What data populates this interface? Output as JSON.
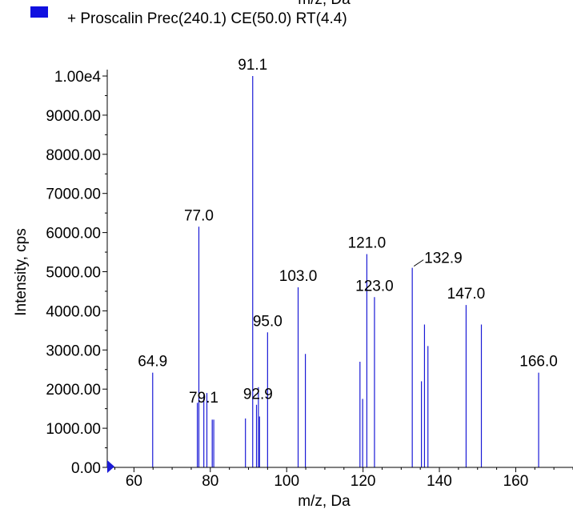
{
  "header": {
    "cut_title": "m/z, Da"
  },
  "legend": {
    "text": "+ Proscalin Prec(240.1) CE(50.0) RT(4.4)",
    "swatch_color": "#1010e0"
  },
  "colors": {
    "peaks": "#1a1ad6",
    "axis": "#000000",
    "marker": "#1a1ad6"
  },
  "chart_data": {
    "type": "bar",
    "xlabel": "m/z, Da",
    "ylabel": "Intensity, cps",
    "xlim": [
      53,
      175
    ],
    "ylim": [
      0,
      10000
    ],
    "x_ticks": [
      {
        "value": 60,
        "label": "60"
      },
      {
        "value": 80,
        "label": "80"
      },
      {
        "value": 100,
        "label": "100"
      },
      {
        "value": 120,
        "label": "120"
      },
      {
        "value": 140,
        "label": "140"
      },
      {
        "value": 160,
        "label": "160"
      }
    ],
    "y_ticks": [
      {
        "value": 0,
        "label": "0.00"
      },
      {
        "value": 1000,
        "label": "1000.00"
      },
      {
        "value": 2000,
        "label": "2000.00"
      },
      {
        "value": 3000,
        "label": "3000.00"
      },
      {
        "value": 4000,
        "label": "4000.00"
      },
      {
        "value": 5000,
        "label": "5000.00"
      },
      {
        "value": 6000,
        "label": "6000.00"
      },
      {
        "value": 7000,
        "label": "7000.00"
      },
      {
        "value": 8000,
        "label": "8000.00"
      },
      {
        "value": 9000,
        "label": "9000.00"
      },
      {
        "value": 10000,
        "label": "1.00e4"
      }
    ],
    "peaks": [
      {
        "mz": 64.9,
        "intensity": 2420,
        "label": "64.9"
      },
      {
        "mz": 76.6,
        "intensity": 1650,
        "label": ""
      },
      {
        "mz": 77.0,
        "intensity": 6150,
        "label": "77.0"
      },
      {
        "mz": 78.3,
        "intensity": 1850,
        "label": ""
      },
      {
        "mz": 79.1,
        "intensity": 1900,
        "label": "79.1"
      },
      {
        "mz": 80.5,
        "intensity": 1220,
        "label": ""
      },
      {
        "mz": 80.9,
        "intensity": 1220,
        "label": ""
      },
      {
        "mz": 89.2,
        "intensity": 1250,
        "label": ""
      },
      {
        "mz": 91.1,
        "intensity": 10000,
        "label": "91.1"
      },
      {
        "mz": 92.1,
        "intensity": 1600,
        "label": ""
      },
      {
        "mz": 92.6,
        "intensity": 2050,
        "label": ""
      },
      {
        "mz": 92.9,
        "intensity": 1300,
        "label": "92.9"
      },
      {
        "mz": 95.0,
        "intensity": 3450,
        "label": "95.0"
      },
      {
        "mz": 103.0,
        "intensity": 4600,
        "label": "103.0"
      },
      {
        "mz": 104.9,
        "intensity": 2900,
        "label": ""
      },
      {
        "mz": 119.2,
        "intensity": 2700,
        "label": ""
      },
      {
        "mz": 119.9,
        "intensity": 1750,
        "label": ""
      },
      {
        "mz": 121.0,
        "intensity": 5450,
        "label": "121.0"
      },
      {
        "mz": 123.0,
        "intensity": 4350,
        "label": "123.0"
      },
      {
        "mz": 132.9,
        "intensity": 5100,
        "label": "132.9"
      },
      {
        "mz": 135.3,
        "intensity": 2200,
        "label": ""
      },
      {
        "mz": 136.1,
        "intensity": 3650,
        "label": ""
      },
      {
        "mz": 137.0,
        "intensity": 3100,
        "label": ""
      },
      {
        "mz": 147.0,
        "intensity": 4150,
        "label": "147.0"
      },
      {
        "mz": 151.0,
        "intensity": 3650,
        "label": ""
      },
      {
        "mz": 166.0,
        "intensity": 2420,
        "label": "166.0"
      }
    ]
  }
}
